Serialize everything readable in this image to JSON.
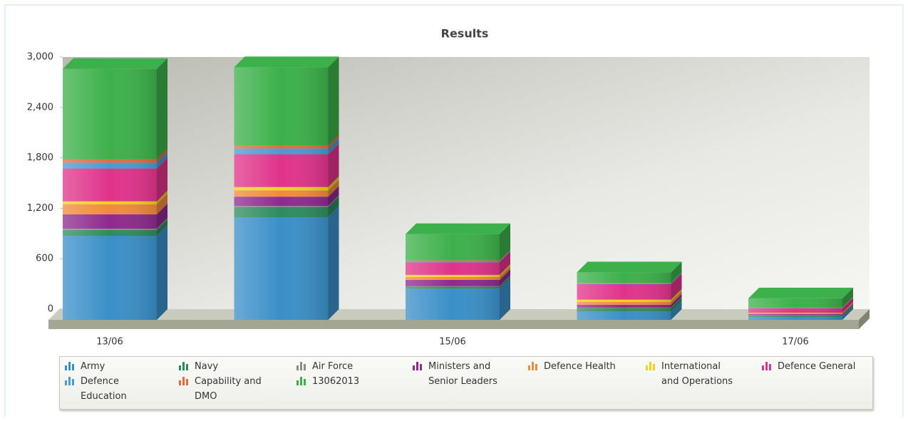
{
  "chart_data": {
    "type": "bar",
    "stacked": true,
    "title": "Results",
    "categories": [
      "13/06",
      null,
      "15/06",
      null,
      "17/06"
    ],
    "ylim": [
      0,
      3000
    ],
    "yticks": [
      0,
      600,
      {
        "value": 1200,
        "label": "1,200"
      },
      {
        "value": 1800,
        "label": "1,800"
      },
      {
        "value": 2400,
        "label": "2,400"
      },
      {
        "value": 3000,
        "label": "3,000"
      }
    ],
    "series": [
      {
        "name": "Army",
        "color": "#3a8fc8",
        "values": [
          1000,
          1220,
          370,
          100,
          35
        ]
      },
      {
        "name": "Navy",
        "color": "#2e8b5f",
        "values": [
          70,
          125,
          25,
          40,
          20
        ]
      },
      {
        "name": "Air Force",
        "color": "#8a8c8a",
        "values": [
          15,
          10,
          5,
          5,
          5
        ]
      },
      {
        "name": "Ministers and Senior Leaders",
        "color": "#8e2a8e",
        "values": [
          170,
          110,
          75,
          35,
          10
        ]
      },
      {
        "name": "Defence Health",
        "color": "#f08a3c",
        "values": [
          120,
          75,
          35,
          35,
          10
        ]
      },
      {
        "name": "International and Operations",
        "color": "#f2d21b",
        "values": [
          35,
          40,
          25,
          25,
          5
        ]
      },
      {
        "name": "Defence General",
        "color": "#e0338a",
        "values": [
          390,
          390,
          150,
          185,
          50
        ]
      },
      {
        "name": "Defence Education",
        "color": "#4a9bd0",
        "values": [
          70,
          70,
          10,
          10,
          5
        ]
      },
      {
        "name": "Capability and DMO",
        "color": "#e86a3a",
        "values": [
          40,
          35,
          10,
          5,
          5
        ]
      },
      {
        "name": "13062013",
        "color": "#3cb04a",
        "values": [
          1075,
          930,
          315,
          125,
          110
        ]
      }
    ]
  }
}
